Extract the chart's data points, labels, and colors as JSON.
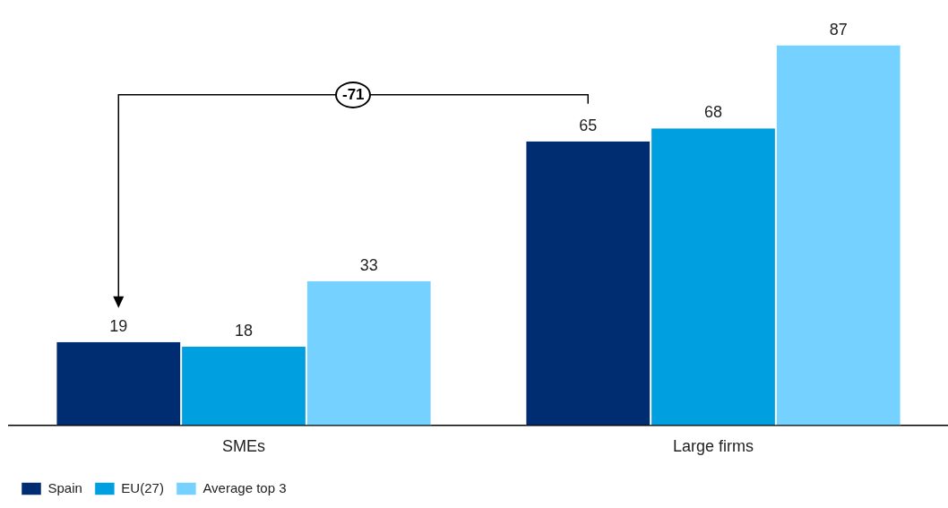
{
  "chart_data": {
    "type": "bar",
    "categories": [
      "SMEs",
      "Large firms"
    ],
    "series": [
      {
        "name": "Spain",
        "color": "#002d72",
        "values": [
          19,
          65
        ]
      },
      {
        "name": "EU(27)",
        "color": "#009fdf",
        "values": [
          18,
          68
        ]
      },
      {
        "name": "Average top 3",
        "color": "#75d1ff",
        "values": [
          33,
          87
        ]
      }
    ],
    "data_labels": true,
    "grid": false,
    "legend": "bottom left",
    "annotations": [
      "-71"
    ]
  }
}
